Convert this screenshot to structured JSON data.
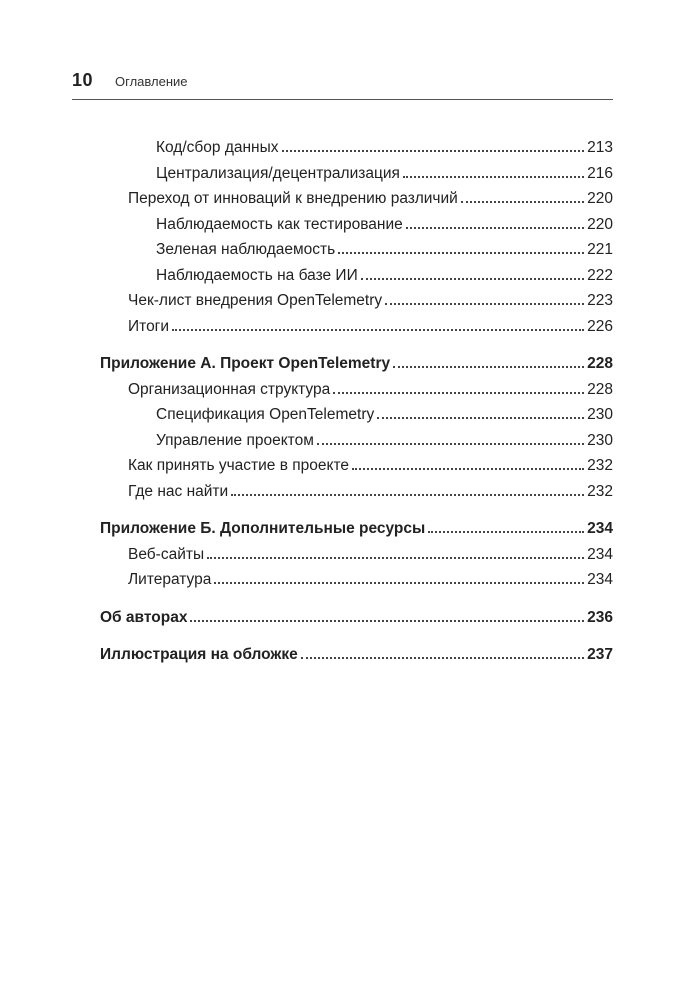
{
  "header": {
    "page_number": "10",
    "title": "Оглавление"
  },
  "groups": [
    {
      "rows": [
        {
          "indent": 3,
          "bold": false,
          "label": "Код/сбор данных",
          "page": "213"
        },
        {
          "indent": 3,
          "bold": false,
          "label": "Централизация/децентрализация",
          "page": "216"
        },
        {
          "indent": 2,
          "bold": false,
          "label": "Переход от инноваций к внедрению различий",
          "page": "220"
        },
        {
          "indent": 3,
          "bold": false,
          "label": "Наблюдаемость как тестирование",
          "page": "220"
        },
        {
          "indent": 3,
          "bold": false,
          "label": "Зеленая наблюдаемость",
          "page": "221"
        },
        {
          "indent": 3,
          "bold": false,
          "label": "Наблюдаемость на базе ИИ",
          "page": "222"
        },
        {
          "indent": 2,
          "bold": false,
          "label": "Чек-лист внедрения OpenTelemetry",
          "page": "223"
        },
        {
          "indent": 2,
          "bold": false,
          "label": "Итоги",
          "page": "226"
        }
      ]
    },
    {
      "rows": [
        {
          "indent": 1,
          "bold": true,
          "label": "Приложение А. Проект OpenTelemetry",
          "page": "228"
        },
        {
          "indent": 2,
          "bold": false,
          "label": "Организационная структура",
          "page": "228"
        },
        {
          "indent": 3,
          "bold": false,
          "label": "Спецификация OpenTelemetry",
          "page": "230"
        },
        {
          "indent": 3,
          "bold": false,
          "label": "Управление проектом",
          "page": "230"
        },
        {
          "indent": 2,
          "bold": false,
          "label": "Как принять участие в проекте",
          "page": "232"
        },
        {
          "indent": 2,
          "bold": false,
          "label": "Где нас найти",
          "page": "232"
        }
      ]
    },
    {
      "rows": [
        {
          "indent": 1,
          "bold": true,
          "label": "Приложение Б. Дополнительные ресурсы",
          "page": "234"
        },
        {
          "indent": 2,
          "bold": false,
          "label": "Веб-сайты",
          "page": "234"
        },
        {
          "indent": 2,
          "bold": false,
          "label": "Литература",
          "page": "234"
        }
      ]
    },
    {
      "rows": [
        {
          "indent": 1,
          "bold": true,
          "label": "Об авторах",
          "page": "236"
        }
      ]
    },
    {
      "rows": [
        {
          "indent": 1,
          "bold": true,
          "label": "Иллюстрация на обложке",
          "page": "237"
        }
      ]
    }
  ]
}
